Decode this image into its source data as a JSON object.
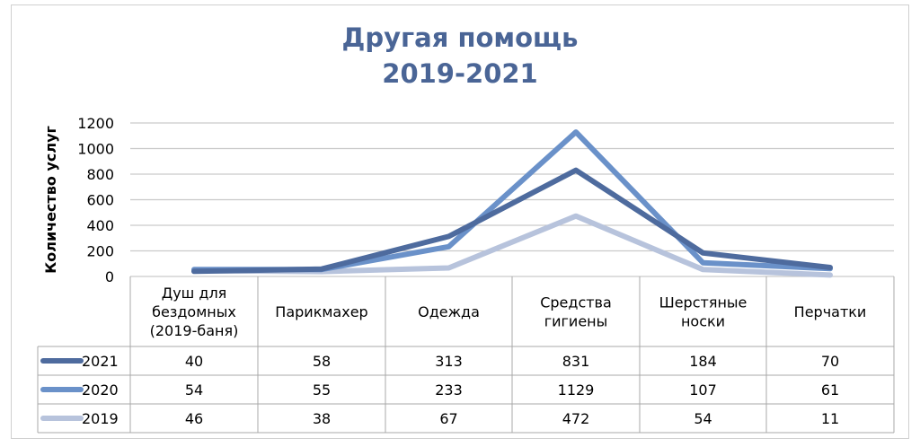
{
  "chart_data": {
    "type": "line",
    "title_line1": "Другая помощь",
    "title_line2": "2019-2021",
    "ylabel": "Количество услуг",
    "ylim": [
      0,
      1200
    ],
    "yticks": [
      "0",
      "200",
      "400",
      "600",
      "800",
      "1000",
      "1200"
    ],
    "categories": [
      [
        "Душ для",
        "бездомных",
        "(2019-баня)"
      ],
      [
        "Парикмахер"
      ],
      [
        "Одежда"
      ],
      [
        "Средства",
        "гигиены"
      ],
      [
        "Шерстяные",
        "носки"
      ],
      [
        "Перчатки"
      ]
    ],
    "series": [
      {
        "name": "2021",
        "color": "#4e6b9e",
        "values": [
          40,
          58,
          313,
          831,
          184,
          70
        ]
      },
      {
        "name": "2020",
        "color": "#6a91c9",
        "values": [
          54,
          55,
          233,
          1129,
          107,
          61
        ]
      },
      {
        "name": "2019",
        "color": "#b7c3dc",
        "values": [
          46,
          38,
          67,
          472,
          54,
          11
        ]
      }
    ],
    "grid": true,
    "legend": "table"
  }
}
